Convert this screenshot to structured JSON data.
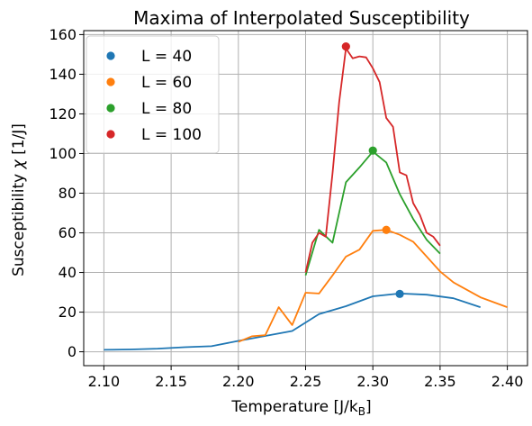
{
  "chart_data": {
    "type": "line",
    "title": "Maxima of Interpolated Susceptibility",
    "xlabel": "Temperature",
    "xlabel_unit": "[J/k",
    "xlabel_unit_sub": "B",
    "xlabel_unit_close": "]",
    "ylabel": "Susceptibility",
    "ylabel_symbol": "χ",
    "ylabel_unit": "[1/J]",
    "xlim": [
      2.085,
      2.415
    ],
    "ylim": [
      -7,
      162
    ],
    "xticks": [
      2.1,
      2.15,
      2.2,
      2.25,
      2.3,
      2.35,
      2.4
    ],
    "xtick_labels": [
      "2.10",
      "2.15",
      "2.20",
      "2.25",
      "2.30",
      "2.35",
      "2.40"
    ],
    "yticks": [
      0,
      20,
      40,
      60,
      80,
      100,
      120,
      140,
      160
    ],
    "ytick_labels": [
      "0",
      "20",
      "40",
      "60",
      "80",
      "100",
      "120",
      "140",
      "160"
    ],
    "grid": true,
    "legend_position": "top-left",
    "series": [
      {
        "name": "L = 40",
        "color": "#1f77b4",
        "x": [
          2.1,
          2.12,
          2.14,
          2.16,
          2.18,
          2.2,
          2.22,
          2.24,
          2.26,
          2.28,
          2.3,
          2.32,
          2.34,
          2.36,
          2.38
        ],
        "y": [
          1.0,
          1.2,
          1.6,
          2.3,
          2.8,
          5.5,
          8.0,
          10.5,
          19.0,
          23.0,
          28.0,
          29.4,
          28.8,
          27.0,
          22.5
        ],
        "max": {
          "x": 2.32,
          "y": 29.2
        }
      },
      {
        "name": "L = 60",
        "color": "#ff7f0e",
        "x": [
          2.2,
          2.21,
          2.22,
          2.23,
          2.24,
          2.25,
          2.26,
          2.27,
          2.28,
          2.29,
          2.3,
          2.31,
          2.32,
          2.33,
          2.34,
          2.35,
          2.36,
          2.38,
          2.4
        ],
        "y": [
          5.0,
          7.8,
          8.4,
          22.5,
          13.5,
          29.8,
          29.4,
          38.5,
          48.0,
          51.5,
          61.0,
          61.5,
          59.0,
          55.5,
          48.0,
          40.5,
          35.0,
          27.5,
          22.5
        ],
        "max": {
          "x": 2.31,
          "y": 61.5
        }
      },
      {
        "name": "L = 80",
        "color": "#2ca02c",
        "x": [
          2.25,
          2.26,
          2.27,
          2.28,
          2.29,
          2.3,
          2.31,
          2.32,
          2.33,
          2.34,
          2.35
        ],
        "y": [
          38.5,
          61.5,
          55.0,
          85.5,
          93.0,
          101.0,
          95.5,
          79.5,
          67.0,
          56.5,
          49.5
        ],
        "max": {
          "x": 2.3,
          "y": 101.5
        }
      },
      {
        "name": "L = 100",
        "color": "#d62728",
        "x": [
          2.25,
          2.255,
          2.26,
          2.265,
          2.27,
          2.275,
          2.28,
          2.285,
          2.29,
          2.295,
          2.3,
          2.305,
          2.31,
          2.315,
          2.32,
          2.325,
          2.33,
          2.335,
          2.34,
          2.345,
          2.35
        ],
        "y": [
          40.0,
          55.0,
          60.0,
          58.0,
          90.0,
          126.0,
          153.0,
          148.0,
          149.0,
          148.5,
          143.0,
          136.0,
          118.0,
          113.5,
          90.5,
          89.0,
          75.0,
          69.0,
          60.0,
          58.0,
          53.5
        ],
        "max": {
          "x": 2.28,
          "y": 154.0
        }
      }
    ]
  }
}
